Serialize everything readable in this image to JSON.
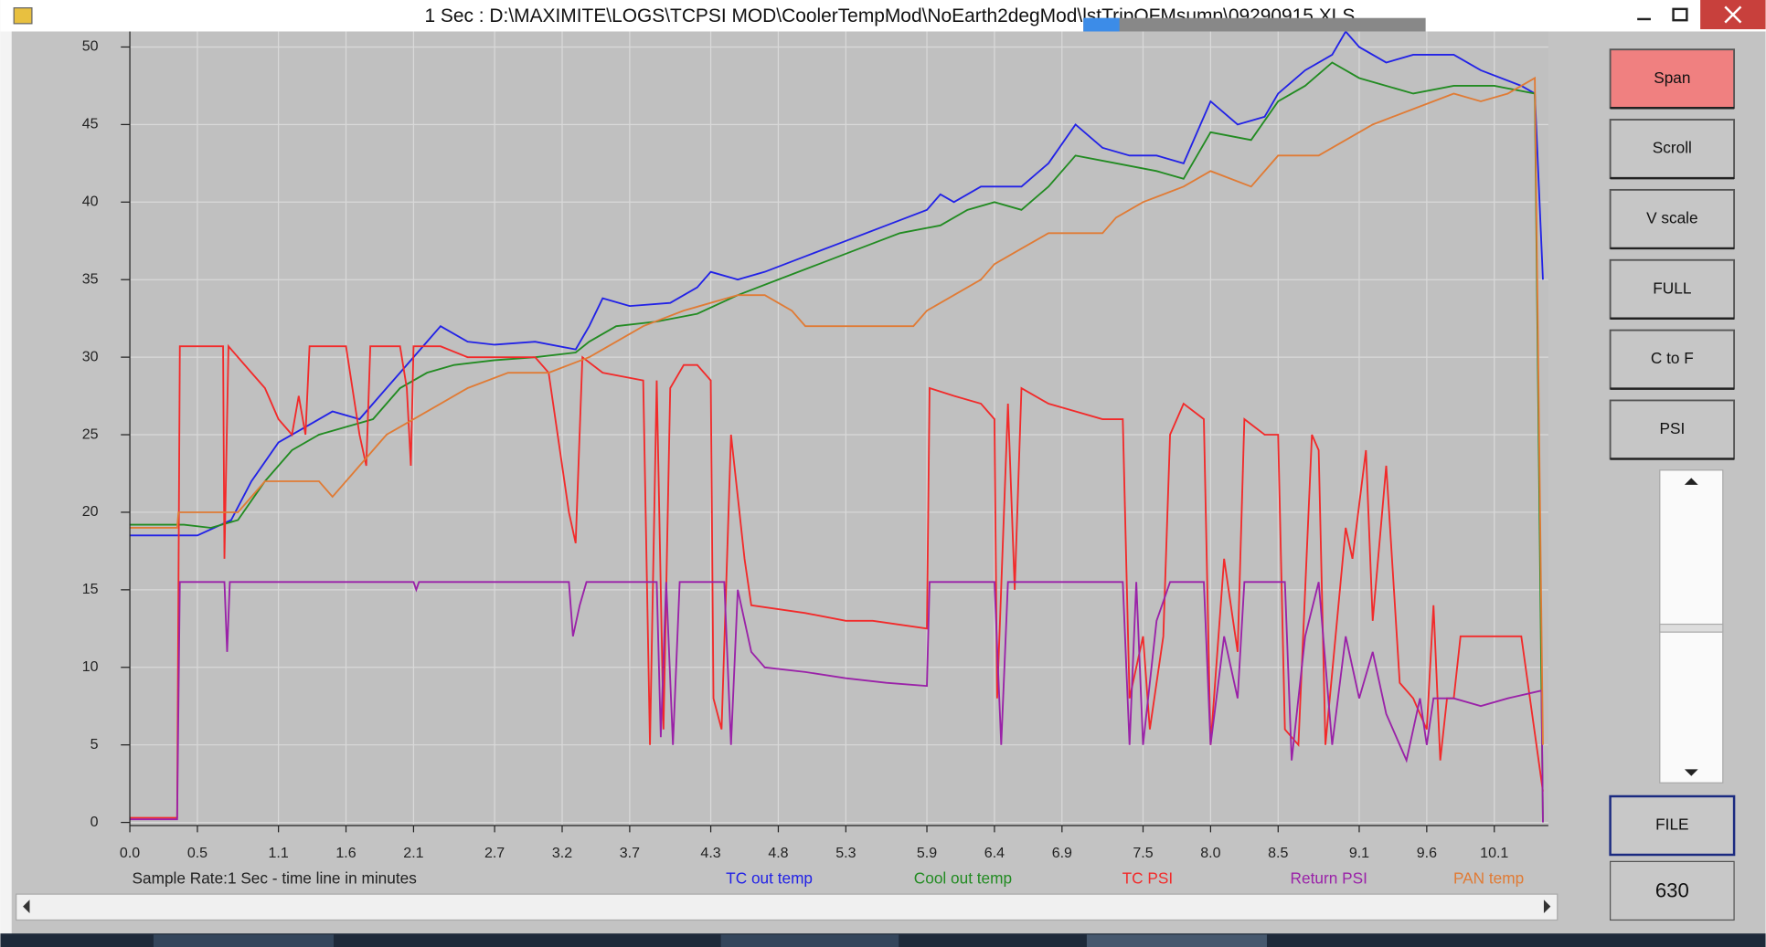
{
  "window": {
    "title": "1 Sec : D:\\MAXIMITE\\LOGS\\TCPSI MOD\\CoolerTempMod\\NoEarth2degMod\\lstTripOFMsump\\09290915.XLS"
  },
  "buttons": [
    "Span",
    "Scroll",
    "V scale",
    "FULL",
    "C to F",
    "PSI"
  ],
  "file_button": "FILE",
  "count_display": "630",
  "chart_data": {
    "type": "line",
    "x_axis_label": "Sample Rate:1 Sec - time line in minutes",
    "xlim": [
      0,
      10.5
    ],
    "ylim": [
      -0.2,
      51
    ],
    "xticks": [
      {
        "value": 0,
        "label": "0.0"
      },
      0.5,
      1.1,
      1.6,
      2.1,
      2.7,
      3.2,
      3.7,
      4.3,
      4.8,
      5.3,
      5.9,
      6.4,
      6.9,
      7.5,
      {
        "value": 8,
        "label": "8.0"
      },
      8.5,
      9.1,
      9.6,
      10.1
    ],
    "yticks": [
      0,
      5,
      10,
      15,
      20,
      25,
      30,
      35,
      40,
      45,
      50
    ],
    "grid": true,
    "series": [
      {
        "name": "TC out temp",
        "color": "#2222e6",
        "x": [
          0,
          0.5,
          0.75,
          0.9,
          1.1,
          1.3,
          1.5,
          1.7,
          1.9,
          2.0,
          2.1,
          2.2,
          2.3,
          2.5,
          2.7,
          3.0,
          3.3,
          3.4,
          3.5,
          3.7,
          4.0,
          4.2,
          4.3,
          4.5,
          4.7,
          5.0,
          5.3,
          5.6,
          5.9,
          6.0,
          6.1,
          6.3,
          6.6,
          6.8,
          7.0,
          7.2,
          7.4,
          7.6,
          7.8,
          7.9,
          8.0,
          8.2,
          8.4,
          8.5,
          8.7,
          8.9,
          9.0,
          9.1,
          9.3,
          9.5,
          9.8,
          10.0,
          10.3,
          10.4,
          10.46
        ],
        "values": [
          18.5,
          18.5,
          19.5,
          22,
          24.5,
          25.5,
          26.5,
          26,
          28,
          29,
          30,
          31,
          32,
          31,
          30.8,
          31,
          30.5,
          32,
          33.8,
          33.3,
          33.5,
          34.5,
          35.5,
          35,
          35.5,
          36.5,
          37.5,
          38.5,
          39.5,
          40.5,
          40,
          41,
          41,
          42.5,
          45,
          43.5,
          43,
          43,
          42.5,
          44.5,
          46.5,
          45,
          45.5,
          47,
          48.5,
          49.5,
          51,
          50,
          49,
          49.5,
          49.5,
          48.5,
          47.5,
          47,
          35
        ]
      },
      {
        "name": "Cool out temp",
        "color": "#228b22",
        "x": [
          0,
          0.4,
          0.6,
          0.8,
          1.0,
          1.2,
          1.4,
          1.6,
          1.8,
          2.0,
          2.2,
          2.4,
          2.7,
          3.0,
          3.3,
          3.4,
          3.6,
          3.9,
          4.2,
          4.5,
          4.8,
          5.1,
          5.4,
          5.7,
          6.0,
          6.2,
          6.4,
          6.6,
          6.8,
          7.0,
          7.3,
          7.6,
          7.8,
          8.0,
          8.3,
          8.5,
          8.7,
          8.9,
          9.1,
          9.3,
          9.5,
          9.8,
          10.1,
          10.4,
          10.46
        ],
        "values": [
          19.2,
          19.2,
          19,
          19.5,
          22,
          24,
          25,
          25.5,
          26,
          28,
          29,
          29.5,
          29.8,
          30,
          30.3,
          31,
          32,
          32.3,
          32.8,
          34,
          35,
          36,
          37,
          38,
          38.5,
          39.5,
          40,
          39.5,
          41,
          43,
          42.5,
          42,
          41.5,
          44.5,
          44,
          46.5,
          47.5,
          49,
          48,
          47.5,
          47,
          47.5,
          47.5,
          47,
          0
        ]
      },
      {
        "name": "TC PSI",
        "color": "#f22a2a",
        "x": [
          0,
          0.35,
          0.37,
          0.69,
          0.7,
          0.73,
          0.9,
          1.0,
          1.1,
          1.2,
          1.25,
          1.3,
          1.33,
          1.6,
          1.7,
          1.75,
          1.78,
          2.0,
          2.05,
          2.08,
          2.1,
          2.3,
          2.5,
          2.7,
          3.0,
          3.1,
          3.25,
          3.3,
          3.35,
          3.5,
          3.8,
          3.85,
          3.9,
          3.95,
          4.0,
          4.1,
          4.2,
          4.3,
          4.32,
          4.38,
          4.45,
          4.55,
          4.6,
          5.0,
          5.3,
          5.5,
          5.9,
          5.92,
          6.1,
          6.3,
          6.4,
          6.42,
          6.5,
          6.55,
          6.6,
          6.8,
          7.0,
          7.2,
          7.35,
          7.4,
          7.5,
          7.55,
          7.65,
          7.7,
          7.8,
          7.95,
          8.0,
          8.1,
          8.2,
          8.25,
          8.4,
          8.5,
          8.55,
          8.65,
          8.75,
          8.8,
          8.85,
          9.0,
          9.05,
          9.15,
          9.2,
          9.3,
          9.4,
          9.5,
          9.6,
          9.65,
          9.7,
          9.75,
          9.8,
          9.85,
          10.0,
          10.3,
          10.46
        ],
        "values": [
          0.3,
          0.3,
          30.7,
          30.7,
          17,
          30.7,
          29,
          28,
          26,
          25,
          27.5,
          25,
          30.7,
          30.7,
          25,
          23,
          30.7,
          30.7,
          28,
          23,
          30.7,
          30.7,
          30,
          30,
          30,
          29,
          20,
          18,
          30,
          29,
          28.5,
          5,
          28.5,
          6,
          28,
          29.5,
          29.5,
          28.5,
          8,
          6,
          25,
          17,
          14,
          13.5,
          13,
          13,
          12.5,
          28,
          27.5,
          27,
          26,
          8,
          27,
          15,
          28,
          27,
          26.5,
          26,
          26,
          8,
          12,
          6,
          12,
          25,
          27,
          26,
          5,
          17,
          11,
          26,
          25,
          25,
          6,
          5,
          25,
          24,
          5,
          19,
          17,
          24,
          13,
          23,
          9,
          8,
          6,
          14,
          4,
          8,
          8,
          12,
          12,
          12,
          2
        ]
      },
      {
        "name": "Return PSI",
        "color": "#9a22a8",
        "x": [
          0,
          0.35,
          0.37,
          0.7,
          0.72,
          0.74,
          2.1,
          2.12,
          2.14,
          3.25,
          3.28,
          3.33,
          3.38,
          3.9,
          3.93,
          3.97,
          4.02,
          4.07,
          4.4,
          4.45,
          4.5,
          4.6,
          4.7,
          5.0,
          5.3,
          5.6,
          5.9,
          5.92,
          6.4,
          6.45,
          6.5,
          7.35,
          7.4,
          7.45,
          7.5,
          7.6,
          7.7,
          7.95,
          8.0,
          8.1,
          8.2,
          8.25,
          8.55,
          8.6,
          8.7,
          8.8,
          8.9,
          9.0,
          9.1,
          9.2,
          9.3,
          9.45,
          9.55,
          9.6,
          9.65,
          9.8,
          10.0,
          10.2,
          10.45,
          10.46
        ],
        "values": [
          0.2,
          0.2,
          15.5,
          15.5,
          11,
          15.5,
          15.5,
          15,
          15.5,
          15.5,
          12,
          14,
          15.5,
          15.5,
          5.5,
          15.5,
          5,
          15.5,
          15.5,
          5,
          15,
          11,
          10,
          9.7,
          9.3,
          9,
          8.8,
          15.5,
          15.5,
          5,
          15.5,
          15.5,
          5,
          15.5,
          5,
          13,
          15.5,
          15.5,
          5,
          12,
          8,
          15.5,
          15.5,
          4,
          12,
          15.5,
          5,
          12,
          8,
          11,
          7,
          4,
          8,
          5,
          8,
          8,
          7.5,
          8,
          8.5,
          0
        ]
      },
      {
        "name": "PAN temp",
        "color": "#e07b35",
        "x": [
          0,
          0.35,
          0.36,
          0.8,
          0.9,
          1.0,
          1.4,
          1.5,
          1.7,
          1.8,
          1.9,
          2.1,
          2.3,
          2.5,
          2.8,
          3.1,
          3.4,
          3.6,
          3.8,
          4.1,
          4.5,
          4.7,
          4.9,
          5.0,
          5.5,
          5.8,
          5.9,
          6.1,
          6.3,
          6.4,
          6.6,
          6.8,
          7.2,
          7.3,
          7.5,
          7.8,
          8.0,
          8.3,
          8.5,
          8.8,
          9.0,
          9.2,
          9.5,
          9.8,
          10.0,
          10.2,
          10.4,
          10.46
        ],
        "values": [
          19,
          19,
          20,
          20,
          21,
          22,
          22,
          21,
          23,
          24,
          25,
          26,
          27,
          28,
          29,
          29,
          30,
          31,
          32,
          33,
          34,
          34,
          33,
          32,
          32,
          32,
          33,
          34,
          35,
          36,
          37,
          38,
          38,
          39,
          40,
          41,
          42,
          41,
          43,
          43,
          44,
          45,
          46,
          47,
          46.5,
          47,
          48,
          5
        ]
      }
    ]
  }
}
